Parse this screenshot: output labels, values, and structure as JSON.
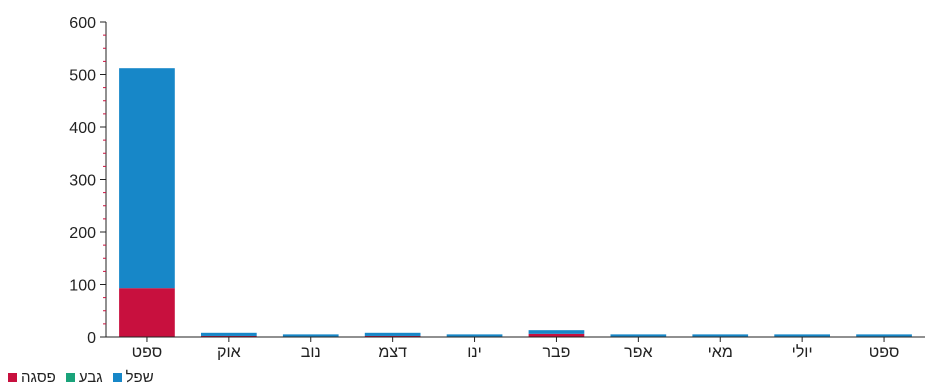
{
  "chart_data": {
    "type": "bar",
    "stacked": true,
    "categories": [
      "ספט",
      "אוק",
      "נוב",
      "דצמ",
      "ינו",
      "פבר",
      "אפר",
      "מאי",
      "יולי",
      "ספט"
    ],
    "series": [
      {
        "name": "פסגה",
        "color": "#c8103e",
        "values": [
          93,
          2,
          1,
          2,
          1,
          6,
          1,
          1,
          1,
          1
        ]
      },
      {
        "name": "גבע",
        "color": "#1aa37a",
        "values": [
          0,
          0,
          0,
          0,
          0,
          0,
          0,
          0,
          0,
          0
        ]
      },
      {
        "name": "שפל",
        "color": "#1787c8",
        "values": [
          419,
          6,
          4,
          6,
          4,
          7,
          4,
          4,
          4,
          4
        ]
      }
    ],
    "legend_order": [
      "פסגה",
      "גבע",
      "שפל"
    ],
    "y_ticks": [
      0,
      100,
      200,
      300,
      400,
      500,
      600
    ],
    "ylim": [
      0,
      600
    ],
    "grid": false,
    "legend_position": "bottom-left"
  }
}
